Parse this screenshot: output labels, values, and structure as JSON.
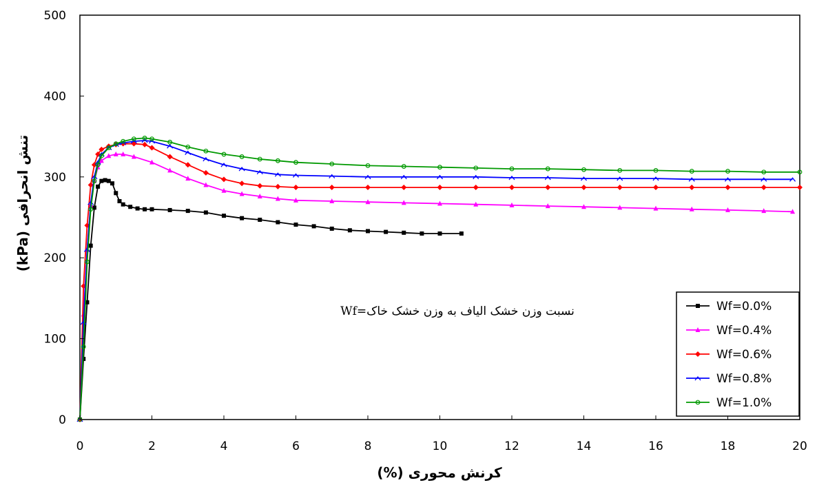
{
  "chart_data": {
    "type": "line",
    "xlabel": "کرنش محوری (%)",
    "ylabel": "تنش انحرافی (kPa)",
    "xlim": [
      0,
      20
    ],
    "ylim": [
      0,
      500
    ],
    "xticks": [
      0,
      2,
      4,
      6,
      8,
      10,
      12,
      14,
      16,
      18,
      20
    ],
    "yticks": [
      0,
      100,
      200,
      300,
      400,
      500
    ],
    "grid": false,
    "legend_position": "bottom-right",
    "annotation": "نسبت وزن خشک الیاف به وزن خشک خاک=Wf",
    "series": [
      {
        "name": "Wf=0.0%",
        "color": "#000000",
        "marker": "square",
        "x": [
          0,
          0.1,
          0.2,
          0.3,
          0.4,
          0.5,
          0.6,
          0.7,
          0.8,
          0.9,
          1.0,
          1.1,
          1.2,
          1.4,
          1.6,
          1.8,
          2.0,
          2.5,
          3.0,
          3.5,
          4.0,
          4.5,
          5.0,
          5.5,
          6.0,
          6.5,
          7.0,
          7.5,
          8.0,
          8.5,
          9.0,
          9.5,
          10.0,
          10.6
        ],
        "y": [
          0,
          75,
          145,
          215,
          262,
          288,
          295,
          296,
          295,
          292,
          280,
          270,
          266,
          263,
          261,
          260,
          260,
          259,
          258,
          256,
          252,
          249,
          247,
          244,
          241,
          239,
          236,
          234,
          233,
          232,
          231,
          230,
          230,
          230
        ]
      },
      {
        "name": "Wf=0.4%",
        "color": "#ff00ff",
        "marker": "triangle",
        "x": [
          0,
          0.1,
          0.2,
          0.3,
          0.4,
          0.5,
          0.6,
          0.8,
          1.0,
          1.2,
          1.5,
          2.0,
          2.5,
          3.0,
          3.5,
          4.0,
          4.5,
          5.0,
          5.5,
          6.0,
          7.0,
          8.0,
          9.0,
          10.0,
          11.0,
          12.0,
          13.0,
          14.0,
          15.0,
          16.0,
          17.0,
          18.0,
          19.0,
          19.8
        ],
        "y": [
          0,
          130,
          210,
          265,
          295,
          312,
          320,
          326,
          328,
          328,
          325,
          318,
          308,
          298,
          290,
          283,
          279,
          276,
          273,
          271,
          270,
          269,
          268,
          267,
          266,
          265,
          264,
          263,
          262,
          261,
          260,
          259,
          258,
          257
        ]
      },
      {
        "name": "Wf=0.6%",
        "color": "#ff0000",
        "marker": "diamond",
        "x": [
          0,
          0.1,
          0.2,
          0.3,
          0.4,
          0.5,
          0.6,
          0.8,
          1.0,
          1.2,
          1.5,
          1.8,
          2.0,
          2.5,
          3.0,
          3.5,
          4.0,
          4.5,
          5.0,
          5.5,
          6.0,
          7.0,
          8.0,
          9.0,
          10.0,
          11.0,
          12.0,
          13.0,
          14.0,
          15.0,
          16.0,
          17.0,
          18.0,
          19.0,
          20.0
        ],
        "y": [
          0,
          165,
          240,
          290,
          315,
          328,
          334,
          338,
          340,
          341,
          341,
          340,
          336,
          325,
          315,
          305,
          297,
          292,
          289,
          288,
          287,
          287,
          287,
          287,
          287,
          287,
          287,
          287,
          287,
          287,
          287,
          287,
          287,
          287,
          287
        ]
      },
      {
        "name": "Wf=0.8%",
        "color": "#0000ff",
        "marker": "dash",
        "x": [
          0,
          0.1,
          0.2,
          0.3,
          0.4,
          0.5,
          0.6,
          0.8,
          1.0,
          1.2,
          1.5,
          1.8,
          2.0,
          2.5,
          3.0,
          3.5,
          4.0,
          4.5,
          5.0,
          5.5,
          6.0,
          7.0,
          8.0,
          9.0,
          10.0,
          11.0,
          12.0,
          13.0,
          14.0,
          15.0,
          16.0,
          17.0,
          18.0,
          19.0,
          19.8
        ],
        "y": [
          0,
          120,
          210,
          268,
          300,
          318,
          328,
          336,
          340,
          342,
          344,
          345,
          344,
          338,
          330,
          322,
          315,
          310,
          306,
          303,
          302,
          301,
          300,
          300,
          300,
          300,
          299,
          299,
          298,
          298,
          298,
          297,
          297,
          297,
          297
        ]
      },
      {
        "name": "Wf=1.0%",
        "color": "#009900",
        "marker": "circle",
        "x": [
          0,
          0.1,
          0.2,
          0.3,
          0.4,
          0.5,
          0.6,
          0.8,
          1.0,
          1.2,
          1.5,
          1.8,
          2.0,
          2.5,
          3.0,
          3.5,
          4.0,
          4.5,
          5.0,
          5.5,
          6.0,
          7.0,
          8.0,
          9.0,
          10.0,
          11.0,
          12.0,
          13.0,
          14.0,
          15.0,
          16.0,
          17.0,
          18.0,
          19.0,
          20.0
        ],
        "y": [
          0,
          90,
          195,
          260,
          295,
          315,
          326,
          336,
          341,
          344,
          347,
          348,
          347,
          343,
          337,
          332,
          328,
          325,
          322,
          320,
          318,
          316,
          314,
          313,
          312,
          311,
          310,
          310,
          309,
          308,
          308,
          307,
          307,
          306,
          306
        ]
      }
    ]
  }
}
